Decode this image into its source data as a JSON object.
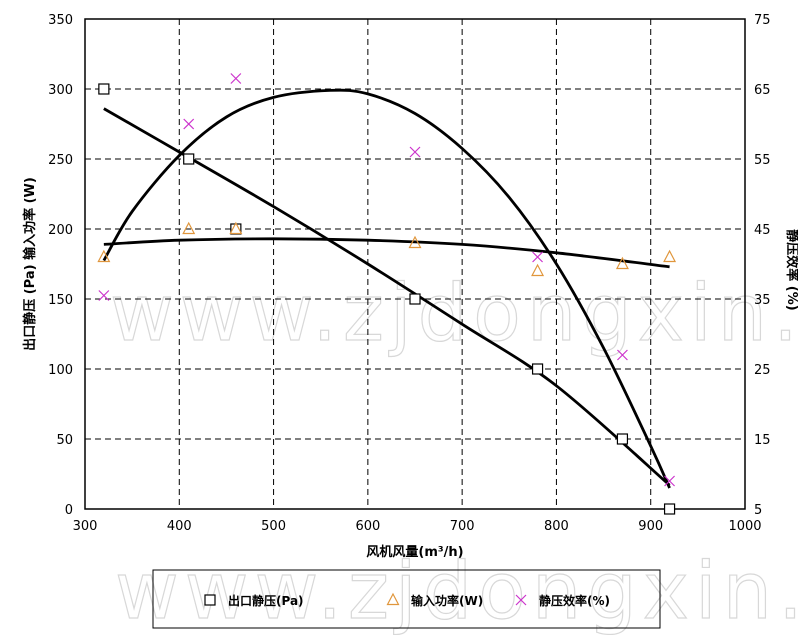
{
  "watermark": "www.zjdongxin.com",
  "chart_data": {
    "type": "scatter",
    "xlabel": "风机风量(m³/h)",
    "ylabel": "出口静压 (Pa) 输入功率 (W)",
    "y2label": "静压效率 (%)",
    "xlim": [
      300,
      1000
    ],
    "xticks": [
      300,
      400,
      500,
      600,
      700,
      800,
      900,
      1000
    ],
    "ylim": [
      0,
      350
    ],
    "yticks": [
      0,
      50,
      100,
      150,
      200,
      250,
      300,
      350
    ],
    "y2lim": [
      5,
      75
    ],
    "y2ticks": [
      5,
      15,
      25,
      35,
      45,
      55,
      65,
      75
    ],
    "grid": true,
    "legend_position": "bottom",
    "series": [
      {
        "name": "出口静压(Pa)",
        "axis": "left",
        "marker": "square",
        "color": "#000000",
        "x": [
          320,
          410,
          460,
          650,
          780,
          870,
          920
        ],
        "y": [
          300,
          250,
          200,
          150,
          100,
          50,
          0
        ],
        "trend_x": [
          320,
          400,
          500,
          600,
          700,
          800,
          920
        ],
        "trend_y": [
          286,
          255,
          216,
          175,
          132,
          88,
          17
        ]
      },
      {
        "name": "输入功率(W)",
        "axis": "left",
        "marker": "triangle",
        "color": "#e0963c",
        "x": [
          320,
          410,
          460,
          650,
          780,
          870,
          920
        ],
        "y": [
          180,
          200,
          200,
          190,
          170,
          175,
          180
        ],
        "trend_x": [
          320,
          400,
          500,
          600,
          700,
          800,
          920
        ],
        "trend_y": [
          189,
          192,
          193,
          192,
          189,
          183,
          173
        ]
      },
      {
        "name": "静压效率(%)",
        "axis": "right",
        "marker": "x",
        "color": "#cc33cc",
        "x": [
          320,
          410,
          460,
          650,
          780,
          870,
          920
        ],
        "y": [
          35.5,
          60,
          66.5,
          56,
          41,
          27,
          9
        ],
        "trend_x": [
          320,
          350,
          400,
          450,
          500,
          560,
          600,
          650,
          700,
          750,
          800,
          850,
          900,
          920
        ],
        "trend_y": [
          40.5,
          47.5,
          55.5,
          61,
          63.8,
          64.8,
          64.3,
          61.5,
          56.5,
          49.5,
          40,
          28,
          14,
          8
        ]
      }
    ]
  }
}
